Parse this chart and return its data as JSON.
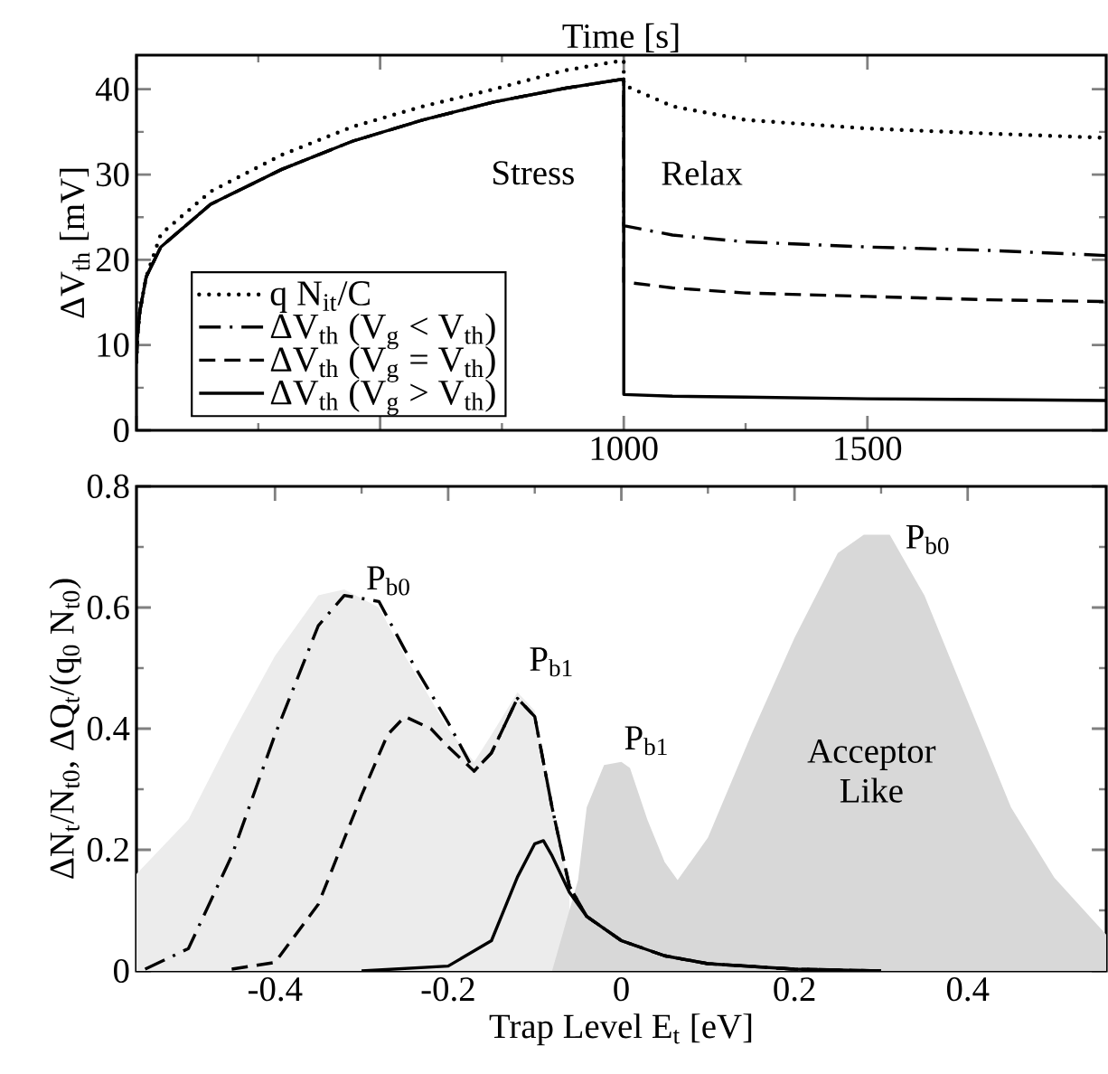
{
  "chart_data": [
    {
      "type": "line",
      "xlabel": "Time  [s]",
      "ylabel": "ΔV$_{th}$  [mV]",
      "xlim": [
        0,
        1990
      ],
      "ylim": [
        0,
        44
      ],
      "xticks": [
        {
          "value": 0,
          "label": null
        },
        {
          "value": 500,
          "label": null
        },
        1000,
        1500
      ],
      "yticks": [
        0,
        10,
        20,
        30,
        40
      ],
      "legend": "bottom left",
      "marker": "none",
      "annotations": [
        "Stress",
        "Relax"
      ],
      "series": [
        {
          "name": "q N$_{it}$/C",
          "color": "#000000",
          "line_style": "dotted",
          "x": [
            0,
            2,
            7,
            20,
            50,
            152,
            298,
            443,
            588,
            733,
            878,
            1000,
            1000,
            1100,
            1250,
            1500,
            1750,
            1990
          ],
          "values": [
            8,
            11,
            14,
            18,
            23,
            28,
            32.3,
            35.6,
            38,
            40,
            42.2,
            43.4,
            40.5,
            38,
            36.4,
            35.4,
            34.8,
            34.3
          ]
        },
        {
          "name": "ΔV$_{th}$ (V$_{g}$ < V$_{th}$)",
          "color": "#000000",
          "line_style": "dashdot",
          "x": [
            0,
            2,
            7,
            20,
            50,
            152,
            298,
            443,
            588,
            733,
            878,
            1000,
            1000,
            1100,
            1250,
            1500,
            1750,
            1990
          ],
          "values": [
            8,
            11,
            14,
            18,
            21.5,
            26.5,
            30.6,
            33.9,
            36.4,
            38.5,
            40.1,
            41.2,
            24,
            22.9,
            22.1,
            21.5,
            21.1,
            20.5
          ]
        },
        {
          "name": "ΔV$_{th}$ (V$_{g}$ = V$_{th}$)",
          "color": "#000000",
          "line_style": "dashed",
          "x": [
            0,
            2,
            7,
            20,
            50,
            152,
            298,
            443,
            588,
            733,
            878,
            1000,
            1000,
            1100,
            1250,
            1500,
            1750,
            1990
          ],
          "values": [
            8,
            11,
            14,
            18,
            21.5,
            26.5,
            30.6,
            33.9,
            36.4,
            38.5,
            40.1,
            41.2,
            17.4,
            16.7,
            16.1,
            15.7,
            15.3,
            15.1
          ]
        },
        {
          "name": "ΔV$_{th}$ (V$_{g}$ > V$_{th}$)",
          "color": "#000000",
          "line_style": "solid",
          "x": [
            0,
            2,
            7,
            20,
            50,
            152,
            298,
            443,
            588,
            733,
            878,
            1000,
            1000,
            1100,
            1250,
            1500,
            1750,
            1990
          ],
          "values": [
            8,
            11,
            14,
            18,
            21.5,
            26.5,
            30.6,
            33.9,
            36.4,
            38.5,
            40.1,
            41.2,
            4.2,
            4,
            3.9,
            3.7,
            3.6,
            3.5
          ]
        }
      ]
    },
    {
      "type": "line",
      "xlabel": "Trap Level  E$_{t}$  [eV]",
      "ylabel": "ΔN$_{t}$/N$_{t0}$, ΔQ$_{t}$/(q$_{0}$ N$_{t0}$)",
      "xlim": [
        -0.56,
        0.56
      ],
      "ylim": [
        0,
        0.8
      ],
      "xticks": [
        -0.4,
        -0.2,
        0,
        0.2,
        0.4
      ],
      "yticks": [
        0,
        0.2,
        0.4,
        0.6,
        0.8
      ],
      "marker": "none",
      "annotations": [
        "P$_{b0}$",
        "P$_{b1}$",
        "P$_{b1}$",
        "P$_{b0}$",
        "Acceptor Like"
      ],
      "series": [
        {
          "type": "area",
          "color": "#ececec",
          "x": [
            -0.56,
            -0.5,
            -0.45,
            -0.4,
            -0.35,
            -0.32,
            -0.28,
            -0.25,
            -0.2,
            -0.17,
            -0.15,
            -0.12,
            -0.1,
            -0.08,
            -0.06
          ],
          "values": [
            0.16,
            0.25,
            0.39,
            0.52,
            0.62,
            0.63,
            0.6,
            0.52,
            0.4,
            0.345,
            0.39,
            0.46,
            0.43,
            0.27,
            0.14
          ]
        },
        {
          "type": "area",
          "color": "#d8d8d8",
          "x": [
            -0.08,
            -0.05,
            -0.04,
            -0.02,
            0,
            0.01,
            0.03,
            0.05,
            0.065,
            0.1,
            0.15,
            0.2,
            0.25,
            0.28,
            0.31,
            0.35,
            0.4,
            0.45,
            0.5,
            0.56
          ],
          "values": [
            0,
            0.15,
            0.27,
            0.34,
            0.345,
            0.335,
            0.25,
            0.18,
            0.15,
            0.22,
            0.39,
            0.55,
            0.69,
            0.72,
            0.72,
            0.62,
            0.445,
            0.27,
            0.154,
            0.06
          ]
        },
        {
          "type": "line",
          "color": "#000000",
          "line_style": "dashdot",
          "x": [
            -0.55,
            -0.5,
            -0.45,
            -0.4,
            -0.35,
            -0.32,
            -0.28,
            -0.25,
            -0.2,
            -0.17,
            -0.15,
            -0.12,
            -0.1,
            -0.08,
            -0.06,
            -0.04,
            0,
            0.05,
            0.1,
            0.2,
            0.3
          ],
          "values": [
            0.003,
            0.037,
            0.19,
            0.39,
            0.57,
            0.62,
            0.61,
            0.53,
            0.41,
            0.33,
            0.36,
            0.45,
            0.42,
            0.27,
            0.14,
            0.09,
            0.05,
            0.025,
            0.012,
            0.003,
            0
          ]
        },
        {
          "type": "line",
          "color": "#000000",
          "line_style": "dashed",
          "x": [
            -0.45,
            -0.4,
            -0.35,
            -0.3,
            -0.27,
            -0.25,
            -0.22,
            -0.2,
            -0.17,
            -0.15,
            -0.12,
            -0.1,
            -0.08,
            -0.06,
            -0.04,
            0,
            0.05,
            0.1,
            0.2,
            0.3
          ],
          "values": [
            0.003,
            0.014,
            0.11,
            0.29,
            0.39,
            0.42,
            0.4,
            0.37,
            0.33,
            0.36,
            0.45,
            0.42,
            0.27,
            0.14,
            0.09,
            0.05,
            0.025,
            0.012,
            0.003,
            0
          ]
        },
        {
          "type": "line",
          "color": "#000000",
          "line_style": "solid",
          "x": [
            -0.3,
            -0.2,
            -0.15,
            -0.12,
            -0.1,
            -0.09,
            -0.08,
            -0.06,
            -0.04,
            0,
            0.05,
            0.1,
            0.2,
            0.3
          ],
          "values": [
            0,
            0.008,
            0.05,
            0.155,
            0.21,
            0.215,
            0.19,
            0.13,
            0.09,
            0.05,
            0.025,
            0.012,
            0.003,
            0
          ]
        }
      ]
    }
  ]
}
